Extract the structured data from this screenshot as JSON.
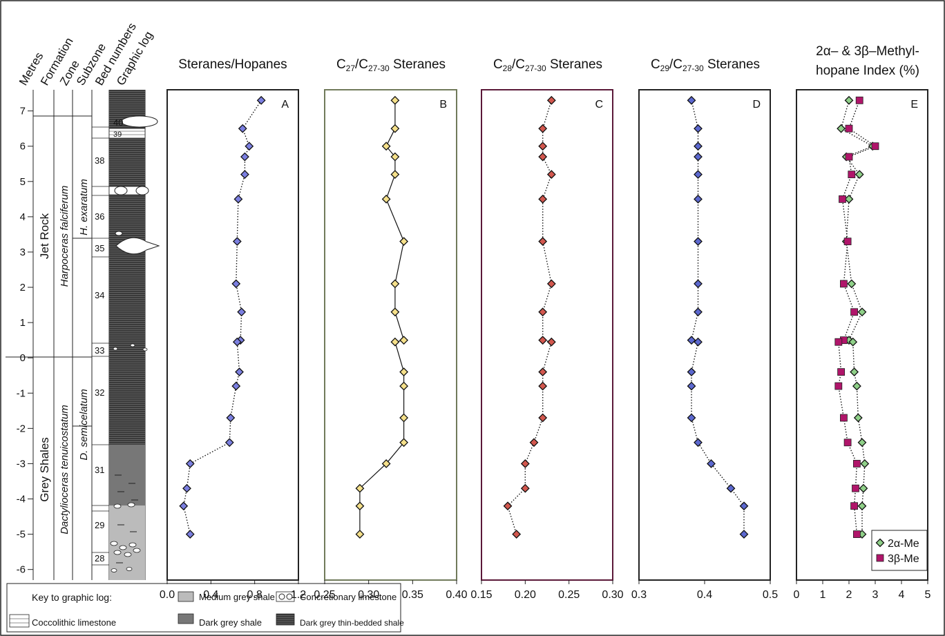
{
  "strat": {
    "column_headers": [
      "Metres",
      "Formation",
      "Zone",
      "Subzone",
      "Bed numbers",
      "Graphic log"
    ],
    "metres_ticks": [
      "7",
      "6",
      "5",
      "4",
      "3",
      "2",
      "1",
      "0",
      "-1",
      "-2",
      "-3",
      "-4",
      "-5",
      "-6"
    ],
    "formations": [
      "Jet Rock",
      "Grey Shales"
    ],
    "zones": [
      "Harpoceras falciferum",
      "Dactylioceras tenuicostatum"
    ],
    "subzones": [
      "H. exaratum",
      "D. semicelatum"
    ],
    "beds": [
      "40",
      "39",
      "38",
      "36",
      "35",
      "34",
      "33",
      "32",
      "31",
      "29",
      "28"
    ]
  },
  "key": {
    "title": "Key to graphic log:",
    "items": [
      "Medium grey shale",
      "Concretionary limestone",
      "Coccolithic limestone",
      "Dark grey shale",
      "Dark grey thin-bedded shale"
    ]
  },
  "colors": {
    "panel_a": "#7b7fe0",
    "panel_b": "#f5e08a",
    "panel_c": "#d2574e",
    "panel_d": "#5c68cf",
    "alpha_me": "#8fd088",
    "beta_me": "#b0156a",
    "frame_b": "#707a5a",
    "frame_c": "#5a1838"
  },
  "chart_data": [
    {
      "type": "scatter",
      "title": "Steranes/Hopanes",
      "panel_letter": "A",
      "xlim": [
        0,
        1.2
      ],
      "ylim": [
        -6.3,
        7.6
      ],
      "x_ticks": [
        "0.0",
        "0.4",
        "0.8",
        "1.2"
      ],
      "connector": "dotted",
      "series": [
        {
          "values": [
            {
              "x": 0.86,
              "y": 7.3
            },
            {
              "x": 0.69,
              "y": 6.5
            },
            {
              "x": 0.75,
              "y": 6.0
            },
            {
              "x": 0.71,
              "y": 5.7
            },
            {
              "x": 0.71,
              "y": 5.2
            },
            {
              "x": 0.65,
              "y": 4.5
            },
            {
              "x": 0.64,
              "y": 3.3
            },
            {
              "x": 0.63,
              "y": 2.1
            },
            {
              "x": 0.68,
              "y": 1.3
            },
            {
              "x": 0.67,
              "y": 0.5
            },
            {
              "x": 0.64,
              "y": 0.45
            },
            {
              "x": 0.66,
              "y": -0.4
            },
            {
              "x": 0.63,
              "y": -0.8
            },
            {
              "x": 0.58,
              "y": -1.7
            },
            {
              "x": 0.57,
              "y": -2.4
            },
            {
              "x": 0.21,
              "y": -3.0
            },
            {
              "x": 0.18,
              "y": -3.7
            },
            {
              "x": 0.15,
              "y": -4.2
            },
            {
              "x": 0.21,
              "y": -5.0
            }
          ]
        }
      ]
    },
    {
      "type": "line",
      "title": "C27/C27-30 Steranes",
      "panel_letter": "B",
      "xlim": [
        0.25,
        0.4
      ],
      "ylim": [
        -6.3,
        7.6
      ],
      "x_ticks": [
        "0.25",
        "0.30",
        "0.35",
        "0.40"
      ],
      "connector": "solid",
      "series": [
        {
          "values": [
            {
              "x": 0.33,
              "y": 7.3
            },
            {
              "x": 0.33,
              "y": 6.5
            },
            {
              "x": 0.32,
              "y": 6.0
            },
            {
              "x": 0.33,
              "y": 5.7
            },
            {
              "x": 0.33,
              "y": 5.2
            },
            {
              "x": 0.32,
              "y": 4.5
            },
            {
              "x": 0.34,
              "y": 3.3
            },
            {
              "x": 0.33,
              "y": 2.1
            },
            {
              "x": 0.33,
              "y": 1.3
            },
            {
              "x": 0.34,
              "y": 0.5
            },
            {
              "x": 0.33,
              "y": 0.45
            },
            {
              "x": 0.34,
              "y": -0.4
            },
            {
              "x": 0.34,
              "y": -0.8
            },
            {
              "x": 0.34,
              "y": -1.7
            },
            {
              "x": 0.34,
              "y": -2.4
            },
            {
              "x": 0.32,
              "y": -3.0
            },
            {
              "x": 0.29,
              "y": -3.7
            },
            {
              "x": 0.29,
              "y": -4.2
            },
            {
              "x": 0.29,
              "y": -5.0
            }
          ]
        }
      ]
    },
    {
      "type": "scatter",
      "title": "C28/C27-30 Steranes",
      "panel_letter": "C",
      "xlim": [
        0.15,
        0.3
      ],
      "ylim": [
        -6.3,
        7.6
      ],
      "x_ticks": [
        "0.15",
        "0.20",
        "0.25",
        "0.30"
      ],
      "connector": "dotted",
      "series": [
        {
          "values": [
            {
              "x": 0.23,
              "y": 7.3
            },
            {
              "x": 0.22,
              "y": 6.5
            },
            {
              "x": 0.22,
              "y": 6.0
            },
            {
              "x": 0.22,
              "y": 5.7
            },
            {
              "x": 0.23,
              "y": 5.2
            },
            {
              "x": 0.22,
              "y": 4.5
            },
            {
              "x": 0.22,
              "y": 3.3
            },
            {
              "x": 0.23,
              "y": 2.1
            },
            {
              "x": 0.22,
              "y": 1.3
            },
            {
              "x": 0.22,
              "y": 0.5
            },
            {
              "x": 0.23,
              "y": 0.45
            },
            {
              "x": 0.22,
              "y": -0.4
            },
            {
              "x": 0.22,
              "y": -0.8
            },
            {
              "x": 0.22,
              "y": -1.7
            },
            {
              "x": 0.21,
              "y": -2.4
            },
            {
              "x": 0.2,
              "y": -3.0
            },
            {
              "x": 0.2,
              "y": -3.7
            },
            {
              "x": 0.18,
              "y": -4.2
            },
            {
              "x": 0.19,
              "y": -5.0
            }
          ]
        }
      ]
    },
    {
      "type": "scatter",
      "title": "C29/C27-30 Steranes",
      "panel_letter": "D",
      "xlim": [
        0.3,
        0.5
      ],
      "ylim": [
        -6.3,
        7.6
      ],
      "x_ticks": [
        "0.3",
        "0.4",
        "0.5"
      ],
      "connector": "dotted",
      "series": [
        {
          "values": [
            {
              "x": 0.38,
              "y": 7.3
            },
            {
              "x": 0.39,
              "y": 6.5
            },
            {
              "x": 0.39,
              "y": 6.0
            },
            {
              "x": 0.39,
              "y": 5.7
            },
            {
              "x": 0.39,
              "y": 5.2
            },
            {
              "x": 0.39,
              "y": 4.5
            },
            {
              "x": 0.39,
              "y": 3.3
            },
            {
              "x": 0.39,
              "y": 2.1
            },
            {
              "x": 0.39,
              "y": 1.3
            },
            {
              "x": 0.38,
              "y": 0.5
            },
            {
              "x": 0.39,
              "y": 0.45
            },
            {
              "x": 0.38,
              "y": -0.4
            },
            {
              "x": 0.38,
              "y": -0.8
            },
            {
              "x": 0.38,
              "y": -1.7
            },
            {
              "x": 0.39,
              "y": -2.4
            },
            {
              "x": 0.41,
              "y": -3.0
            },
            {
              "x": 0.44,
              "y": -3.7
            },
            {
              "x": 0.46,
              "y": -4.2
            },
            {
              "x": 0.46,
              "y": -5.0
            }
          ]
        }
      ]
    },
    {
      "type": "scatter",
      "title": "2α– & 3β–Methyl-hopane Index (%)",
      "title_lines": [
        "2α– & 3β–Methyl-",
        "hopane Index (%)"
      ],
      "panel_letter": "E",
      "xlim": [
        0,
        5
      ],
      "ylim": [
        -6.3,
        7.6
      ],
      "x_ticks": [
        "0",
        "1",
        "2",
        "3",
        "4",
        "5"
      ],
      "connector": "dotted",
      "legend": "bottom-right",
      "series": [
        {
          "name": "2α-Me",
          "marker": "diamond",
          "values": [
            {
              "x": 2.0,
              "y": 7.3
            },
            {
              "x": 1.7,
              "y": 6.5
            },
            {
              "x": 2.9,
              "y": 6.0
            },
            {
              "x": 1.9,
              "y": 5.7
            },
            {
              "x": 2.4,
              "y": 5.2
            },
            {
              "x": 2.0,
              "y": 4.5
            },
            {
              "x": 1.9,
              "y": 3.3
            },
            {
              "x": 2.1,
              "y": 2.1
            },
            {
              "x": 2.5,
              "y": 1.3
            },
            {
              "x": 2.0,
              "y": 0.5
            },
            {
              "x": 2.15,
              "y": 0.45
            },
            {
              "x": 2.2,
              "y": -0.4
            },
            {
              "x": 2.3,
              "y": -0.8
            },
            {
              "x": 2.35,
              "y": -1.7
            },
            {
              "x": 2.5,
              "y": -2.4
            },
            {
              "x": 2.6,
              "y": -3.0
            },
            {
              "x": 2.55,
              "y": -3.7
            },
            {
              "x": 2.5,
              "y": -4.2
            },
            {
              "x": 2.5,
              "y": -5.0
            }
          ]
        },
        {
          "name": "3β-Me",
          "marker": "square",
          "values": [
            {
              "x": 2.4,
              "y": 7.3
            },
            {
              "x": 2.0,
              "y": 6.5
            },
            {
              "x": 3.0,
              "y": 6.0
            },
            {
              "x": 2.0,
              "y": 5.7
            },
            {
              "x": 2.1,
              "y": 5.2
            },
            {
              "x": 1.75,
              "y": 4.5
            },
            {
              "x": 1.95,
              "y": 3.3
            },
            {
              "x": 1.8,
              "y": 2.1
            },
            {
              "x": 2.2,
              "y": 1.3
            },
            {
              "x": 1.8,
              "y": 0.5
            },
            {
              "x": 1.6,
              "y": 0.45
            },
            {
              "x": 1.7,
              "y": -0.4
            },
            {
              "x": 1.6,
              "y": -0.8
            },
            {
              "x": 1.8,
              "y": -1.7
            },
            {
              "x": 1.95,
              "y": -2.4
            },
            {
              "x": 2.3,
              "y": -3.0
            },
            {
              "x": 2.25,
              "y": -3.7
            },
            {
              "x": 2.2,
              "y": -4.2
            },
            {
              "x": 2.3,
              "y": -5.0
            }
          ]
        }
      ]
    }
  ]
}
